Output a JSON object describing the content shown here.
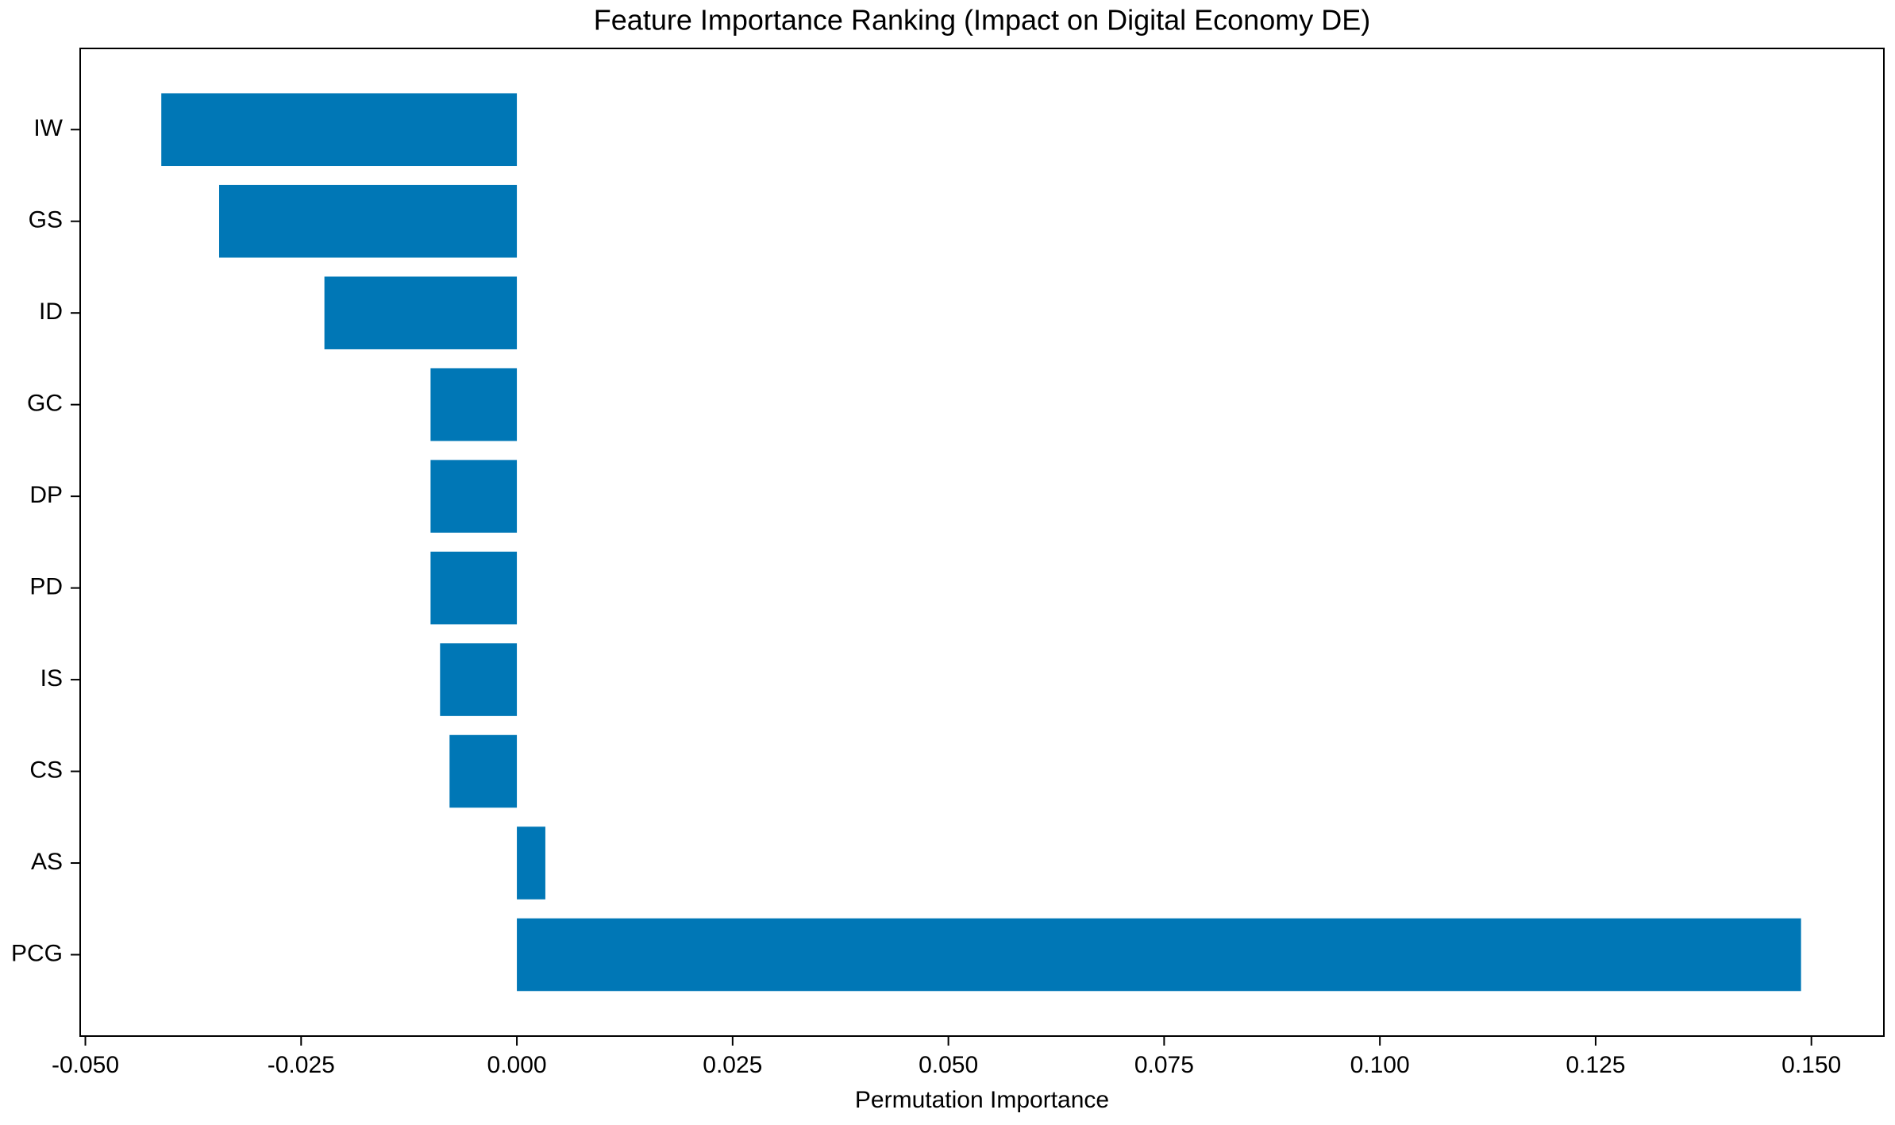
{
  "chart_data": {
    "type": "barh",
    "title": "Feature Importance Ranking (Impact on Digital Economy DE)",
    "x_label": "Permutation Importance",
    "categories": [
      "IW",
      "GS",
      "ID",
      "GC",
      "DP",
      "PD",
      "IS",
      "CS",
      "AS",
      "PCG"
    ],
    "values": [
      -0.0412,
      -0.0345,
      -0.0223,
      -0.01,
      -0.01,
      -0.01,
      -0.0089,
      -0.0078,
      0.0033,
      0.1488
    ],
    "color": "#0077b6",
    "xlim": [
      -0.0506,
      0.1584
    ],
    "xticks": [
      {
        "value": -0.05,
        "label": "-0.050"
      },
      {
        "value": -0.025,
        "label": "-0.025"
      },
      {
        "value": 0,
        "label": "0.000"
      },
      {
        "value": 0.025,
        "label": "0.025"
      },
      {
        "value": 0.05,
        "label": "0.050"
      },
      {
        "value": 0.075,
        "label": "0.075"
      },
      {
        "value": 0.1,
        "label": "0.100"
      },
      {
        "value": 0.125,
        "label": "0.125"
      },
      {
        "value": 0.15,
        "label": "0.150"
      }
    ]
  }
}
